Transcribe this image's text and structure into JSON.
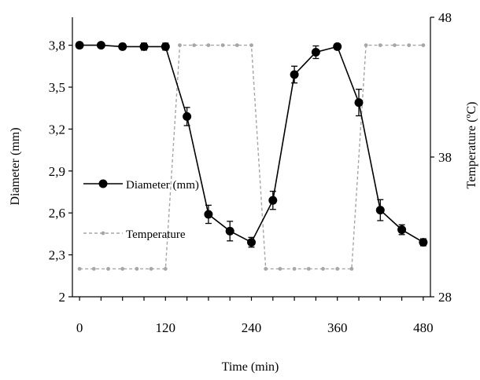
{
  "chart_data": {
    "type": "line",
    "x": [
      0,
      30,
      60,
      90,
      120,
      150,
      180,
      210,
      240,
      270,
      300,
      330,
      360,
      390,
      420,
      450,
      480
    ],
    "x_ticks": [
      0,
      120,
      240,
      360,
      480
    ],
    "x_tick_labels": [
      "0",
      "120",
      "240",
      "360",
      "480"
    ],
    "xlim": [
      -10,
      490
    ],
    "xlabel": "Time (min)",
    "ylabel": "Diameter (mm)",
    "ylabel_right": "Temperature (ºC)",
    "ylim": [
      2.0,
      4.0
    ],
    "y_ticks": [
      2.0,
      2.3,
      2.6,
      2.9,
      3.2,
      3.5,
      3.8
    ],
    "y_tick_labels": [
      "2",
      "2,3",
      "2,6",
      "2,9",
      "3,2",
      "3,5",
      "3,8"
    ],
    "ylim_right": [
      28,
      48
    ],
    "y_ticks_right": [
      28,
      38,
      48
    ],
    "y_tick_labels_right": [
      "28",
      "38",
      "48"
    ],
    "grid": false,
    "legend_position": "left",
    "series": [
      {
        "name": "Diameter (mm)",
        "axis": "left",
        "color": "#000000",
        "marker": "filled-circle",
        "line": "solid",
        "values": [
          3.8,
          3.8,
          3.79,
          3.79,
          3.79,
          3.29,
          2.59,
          2.47,
          2.39,
          2.69,
          3.59,
          3.75,
          3.79,
          3.39,
          2.62,
          2.48,
          2.39
        ],
        "errors": [
          0.02,
          0.015,
          0.02,
          0.025,
          0.025,
          0.065,
          0.065,
          0.07,
          0.035,
          0.065,
          0.06,
          0.045,
          0.02,
          0.095,
          0.075,
          0.035,
          0.025
        ]
      },
      {
        "name": "Temperature",
        "axis": "right",
        "color": "#a6a6a6",
        "marker": "small-dot",
        "line": "dashed",
        "x": [
          0,
          20,
          40,
          60,
          80,
          100,
          120,
          140,
          160,
          180,
          200,
          220,
          240,
          260,
          280,
          300,
          320,
          340,
          360,
          380,
          400,
          420,
          440,
          460,
          480
        ],
        "values": [
          30,
          30,
          30,
          30,
          30,
          30,
          30,
          46,
          46,
          46,
          46,
          46,
          46,
          30,
          30,
          30,
          30,
          30,
          30,
          30,
          46,
          46,
          46,
          46,
          46
        ]
      }
    ]
  }
}
